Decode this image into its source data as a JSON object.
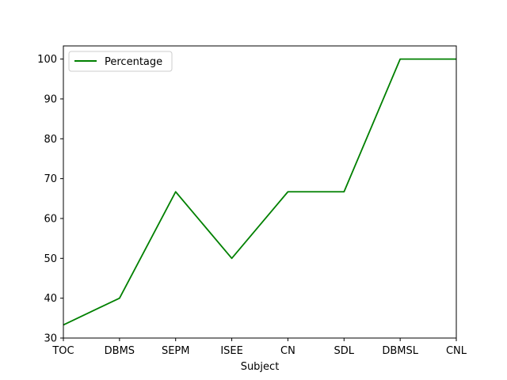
{
  "chart_data": {
    "type": "line",
    "title": "",
    "xlabel": "Subject",
    "ylabel": "",
    "categories": [
      "TOC",
      "DBMS",
      "SEPM",
      "ISEE",
      "CN",
      "SDL",
      "DBMSL",
      "CNL"
    ],
    "series": [
      {
        "name": "Percentage",
        "color": "#008000",
        "values": [
          33.3,
          40,
          66.7,
          50,
          66.7,
          66.7,
          100,
          100
        ]
      }
    ],
    "ylim": [
      30,
      103.3
    ],
    "yticks": [
      30,
      40,
      50,
      60,
      70,
      80,
      90,
      100
    ],
    "legend_position": "upper-left",
    "grid": false
  }
}
